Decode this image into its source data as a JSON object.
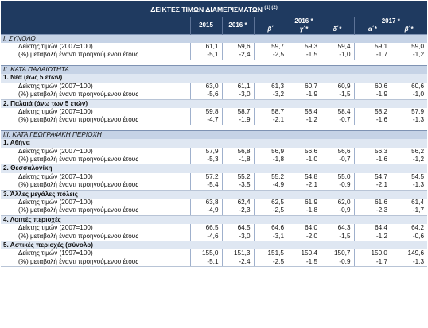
{
  "title": "ΔΕΙΚΤΕΣ ΤΙΜΩΝ ΔΙΑΜΕΡΙΣΜΑΤΩΝ",
  "title_sup": "(1) (2)",
  "header": {
    "col_2015": "2015",
    "col_2016": "2016 *",
    "group_2016": "2016 *",
    "group_2017": "2017 *",
    "q_b": "β΄",
    "q_c": "γ΄*",
    "q_d": "δ΄*",
    "q_a17": "α΄*",
    "q_b17": "β΄*"
  },
  "sections": {
    "s1": {
      "title": "I. ΣΥΝΟΛΟ",
      "r1": {
        "label": "Δείκτης τιμών (2007=100)",
        "v": [
          "61,1",
          "59,6",
          "59,7",
          "59,3",
          "59,4",
          "59,1",
          "59,0"
        ]
      },
      "r2": {
        "label": "(%) μεταβολή έναντι προηγούμενου έτους",
        "v": [
          "-5,1",
          "-2,4",
          "-2,5",
          "-1,5",
          "-1,0",
          "-1,7",
          "-1,2"
        ]
      }
    },
    "s2": {
      "title": "II. ΚΑΤΑ ΠΑΛΑΙΟΤΗΤΑ",
      "g1": {
        "title": "1. Νέα (έως 5 ετών)",
        "r1": {
          "label": "Δείκτης τιμών (2007=100)",
          "v": [
            "63,0",
            "61,1",
            "61,3",
            "60,7",
            "60,9",
            "60,6",
            "60,6"
          ]
        },
        "r2": {
          "label": "(%) μεταβολή έναντι προηγούμενου έτους",
          "v": [
            "-5,6",
            "-3,0",
            "-3,2",
            "-1,9",
            "-1,5",
            "-1,9",
            "-1,0"
          ]
        }
      },
      "g2": {
        "title": "2. Παλαιά (άνω των 5 ετών)",
        "r1": {
          "label": "Δείκτης τιμών (2007=100)",
          "v": [
            "59,8",
            "58,7",
            "58,7",
            "58,4",
            "58,4",
            "58,2",
            "57,9"
          ]
        },
        "r2": {
          "label": "(%) μεταβολή έναντι προηγούμενου έτους",
          "v": [
            "-4,7",
            "-1,9",
            "-2,1",
            "-1,2",
            "-0,7",
            "-1,6",
            "-1,3"
          ]
        }
      }
    },
    "s3": {
      "title": "III. ΚΑΤΑ ΓΕΩΓΡΑΦΙΚΗ ΠΕΡΙΟΧΗ",
      "g1": {
        "title": "1. Αθήνα",
        "r1": {
          "label": "Δείκτης τιμών (2007=100)",
          "v": [
            "57,9",
            "56,8",
            "56,9",
            "56,6",
            "56,6",
            "56,3",
            "56,2"
          ]
        },
        "r2": {
          "label": "(%) μεταβολή έναντι προηγούμενου έτους",
          "v": [
            "-5,3",
            "-1,8",
            "-1,8",
            "-1,0",
            "-0,7",
            "-1,6",
            "-1,2"
          ]
        }
      },
      "g2": {
        "title": "2. Θεσσαλονίκη",
        "r1": {
          "label": "Δείκτης τιμών (2007=100)",
          "v": [
            "57,2",
            "55,2",
            "55,2",
            "54,8",
            "55,0",
            "54,7",
            "54,5"
          ]
        },
        "r2": {
          "label": "(%) μεταβολή έναντι προηγούμενου έτους",
          "v": [
            "-5,4",
            "-3,5",
            "-4,9",
            "-2,1",
            "-0,9",
            "-2,1",
            "-1,3"
          ]
        }
      },
      "g3": {
        "title": "3. Άλλες μεγάλες πόλεις",
        "r1": {
          "label": "Δείκτης τιμών (2007=100)",
          "v": [
            "63,8",
            "62,4",
            "62,5",
            "61,9",
            "62,0",
            "61,6",
            "61,4"
          ]
        },
        "r2": {
          "label": "(%) μεταβολή έναντι προηγούμενου έτους",
          "v": [
            "-4,9",
            "-2,3",
            "-2,5",
            "-1,8",
            "-0,9",
            "-2,3",
            "-1,7"
          ]
        }
      },
      "g4": {
        "title": "4. Λοιπές περιοχές",
        "r1": {
          "label": "Δείκτης τιμών (2007=100)",
          "v": [
            "66,5",
            "64,5",
            "64,6",
            "64,0",
            "64,3",
            "64,4",
            "64,2"
          ]
        },
        "r2": {
          "label": "(%) μεταβολή έναντι προηγούμενου έτους",
          "v": [
            "-4,6",
            "-3,0",
            "-3,1",
            "-2,0",
            "-1,5",
            "-1,2",
            "-0,6"
          ]
        }
      },
      "g5": {
        "title": "5. Αστικές περιοχές (σύνολο)",
        "r1": {
          "label": "Δείκτης τιμών (1997=100)",
          "v": [
            "155,0",
            "151,3",
            "151,5",
            "150,4",
            "150,7",
            "150,0",
            "149,6"
          ]
        },
        "r2": {
          "label": "(%) μεταβολή έναντι προηγούμενου έτους",
          "v": [
            "-5,1",
            "-2,4",
            "-2,5",
            "-1,5",
            "-0,9",
            "-1,7",
            "-1,3"
          ]
        }
      }
    }
  }
}
